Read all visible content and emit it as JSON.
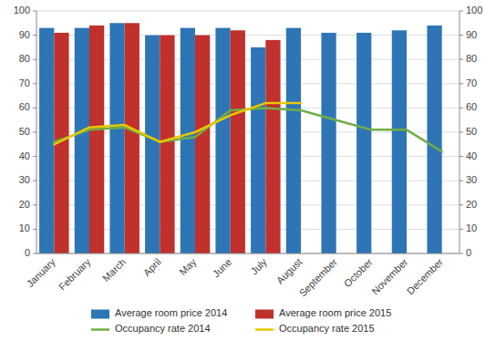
{
  "chart_data": {
    "type": "bar",
    "categories": [
      "January",
      "February",
      "March",
      "April",
      "May",
      "June",
      "July",
      "August",
      "September",
      "October",
      "November",
      "December"
    ],
    "series": [
      {
        "name": "Average room price 2014",
        "type": "bar",
        "color": "#2E75B6",
        "values": [
          93,
          93,
          95,
          90,
          93,
          93,
          85,
          93,
          91,
          91,
          92,
          94
        ]
      },
      {
        "name": "Average room price 2015",
        "type": "bar",
        "color": "#C0302C",
        "values": [
          91,
          94,
          95,
          90,
          90,
          92,
          88,
          null,
          null,
          null,
          null,
          null
        ]
      },
      {
        "name": "Occupancy rate 2014",
        "type": "line",
        "color": "#70AD47",
        "axis": "y2",
        "values": [
          46,
          51,
          52,
          46,
          48,
          59,
          60,
          59,
          55,
          51,
          51,
          42
        ]
      },
      {
        "name": "Occupancy rate 2015",
        "type": "line",
        "color": "#E8C800",
        "axis": "y2",
        "values": [
          45,
          52,
          53,
          46,
          50,
          57,
          62,
          62,
          null,
          null,
          null,
          null
        ]
      }
    ],
    "ylim": [
      0,
      100
    ],
    "yticks": [
      0,
      10,
      20,
      30,
      40,
      50,
      60,
      70,
      80,
      90,
      100
    ],
    "y2lim": [
      0,
      100
    ],
    "y2ticks": [
      0,
      10,
      20,
      30,
      40,
      50,
      60,
      70,
      80,
      90,
      100
    ],
    "grid": true,
    "legend": "bottom"
  }
}
